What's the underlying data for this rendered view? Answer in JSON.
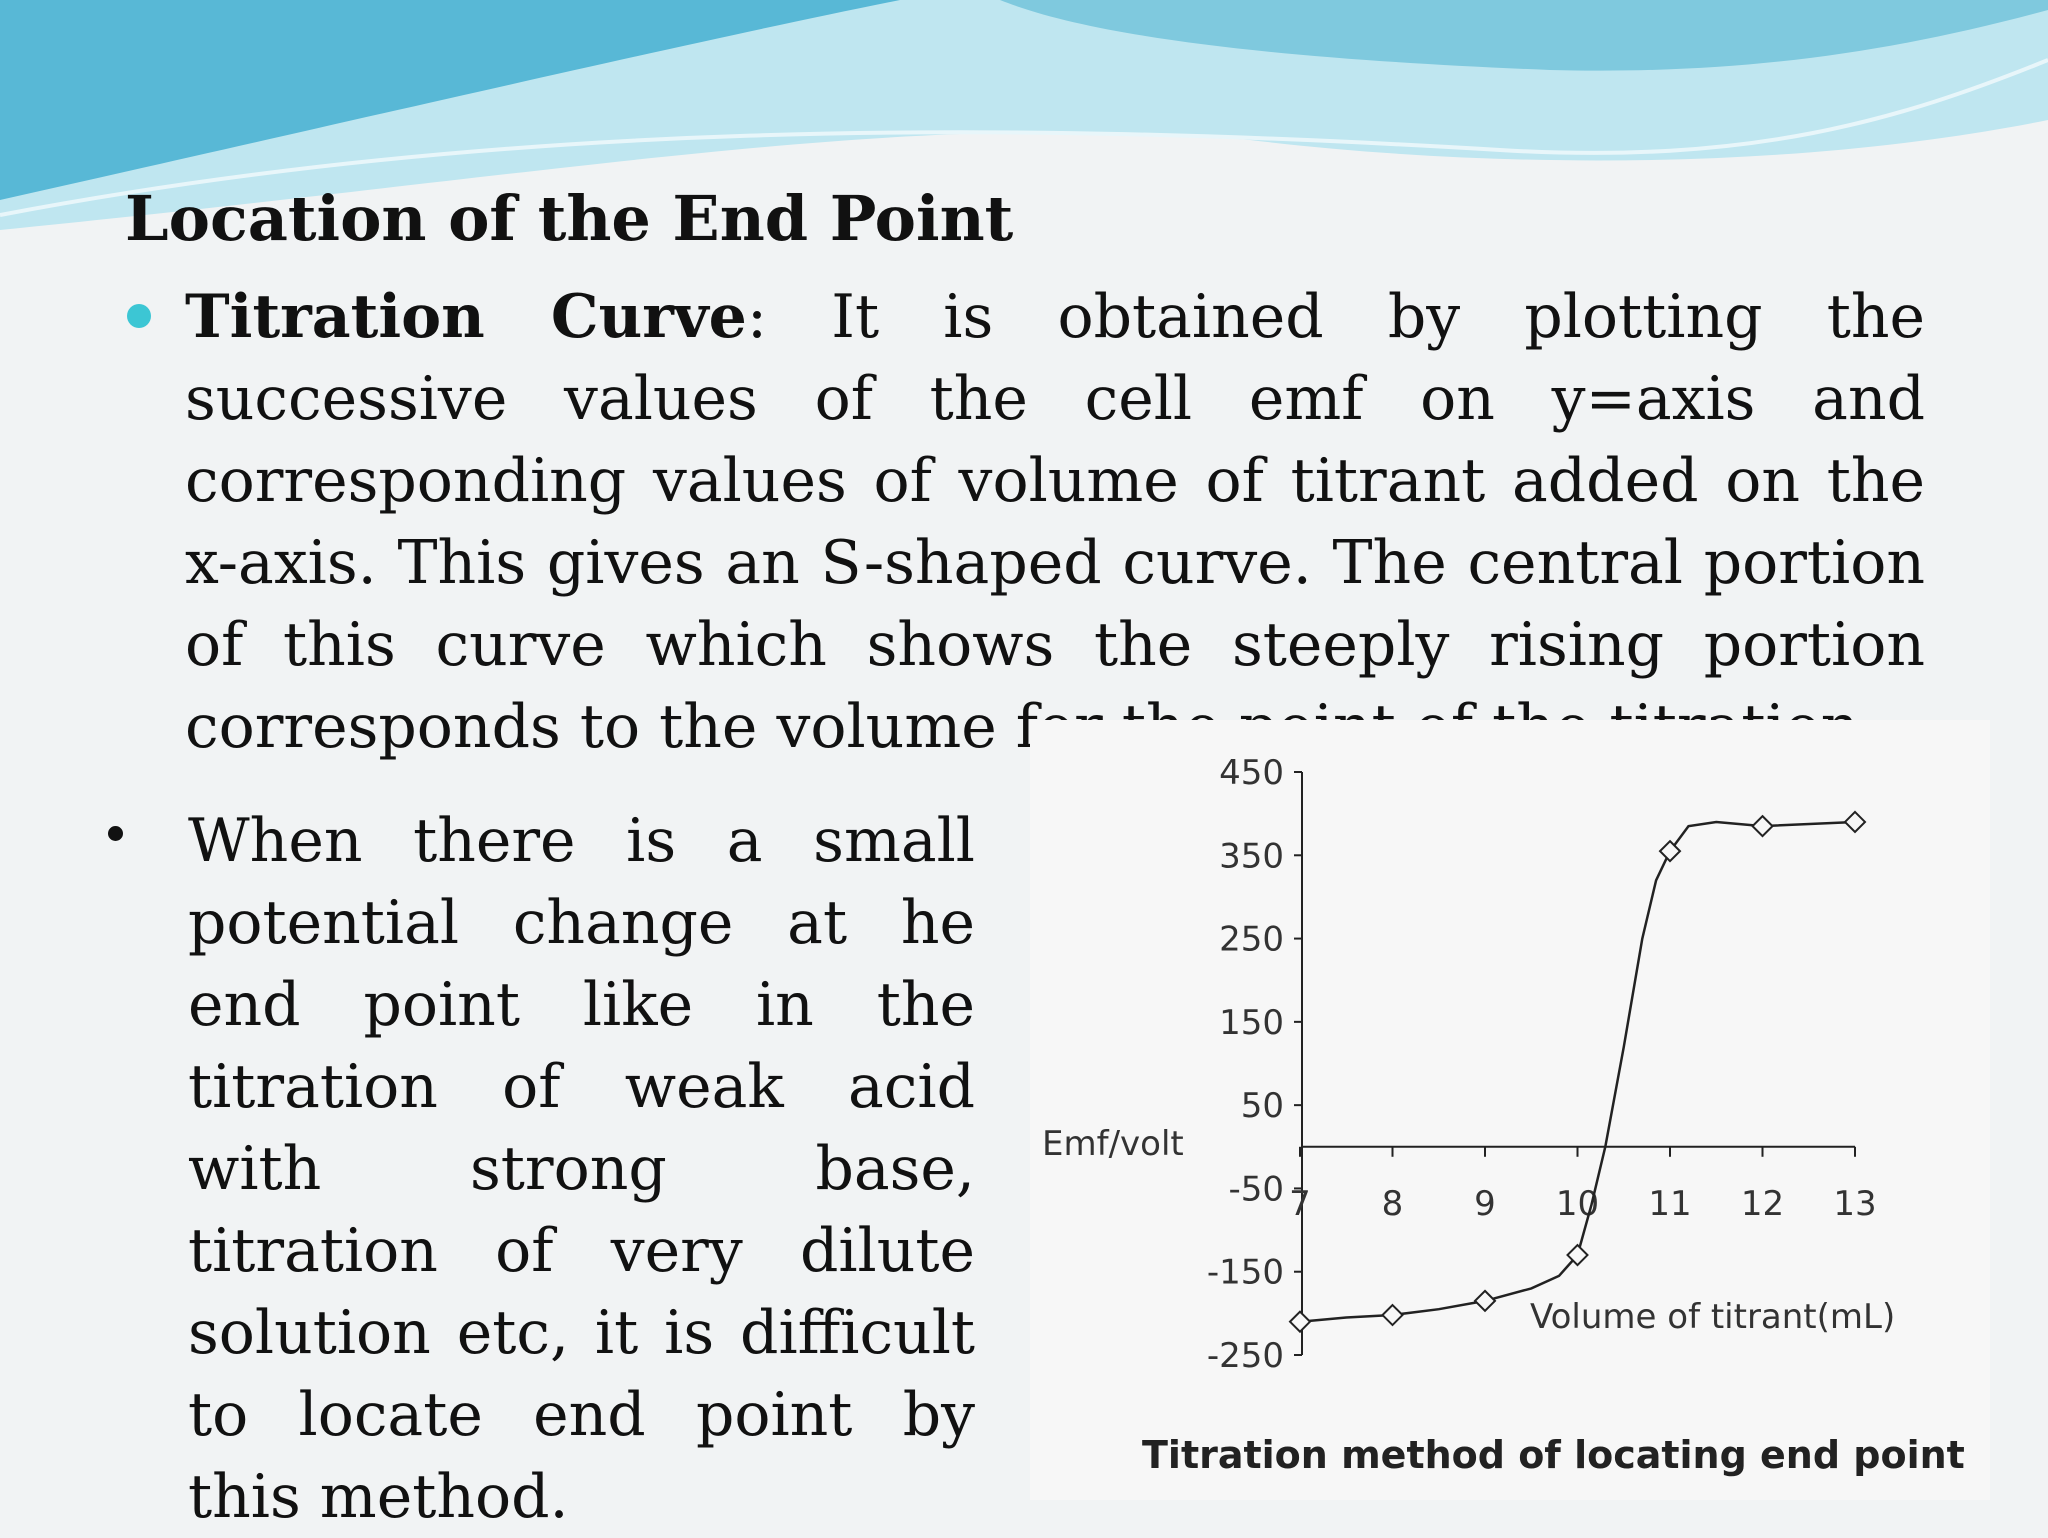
{
  "slide": {
    "title": "Location of the End Point",
    "bullets": [
      {
        "lead": "Titration Curve",
        "text": ": It is obtained by plotting the successive values of the cell emf on y=axis and corresponding values of volume of titrant added on the x-axis. This gives an S-shaped curve. The central portion of this curve which shows the steeply rising portion corresponds to the volume for the point of the titration."
      },
      {
        "text": "When there is a small potential change at he end point like in the titration of weak acid with strong base, titration of very dilute solution etc, it is difficult to locate end point by this method."
      }
    ]
  },
  "colors": {
    "accent": "#3cc6d4",
    "wave_dark": "#58b8d6",
    "wave_light": "#b8e3ee"
  },
  "chart_data": {
    "type": "line",
    "ylabel": "Emf/volt",
    "xlabel": "Volume of titrant(mL)",
    "caption": "Titration method of locating end point",
    "ylim": [
      -250,
      450
    ],
    "xlim": [
      7,
      13
    ],
    "y_ticks": [
      "450",
      "350",
      "250",
      "150",
      "50",
      "-50",
      "-150",
      "-250"
    ],
    "y_tick_values": [
      450,
      350,
      250,
      150,
      50,
      -50,
      -150,
      -250
    ],
    "x_ticks": [
      "7",
      "8",
      "9",
      "10",
      "11",
      "12",
      "13"
    ],
    "x_tick_values": [
      7,
      8,
      9,
      10,
      11,
      12,
      13
    ],
    "x_axis_at_y": 0,
    "markers": [
      {
        "x": 7.0,
        "y": -210
      },
      {
        "x": 8.0,
        "y": -202
      },
      {
        "x": 9.0,
        "y": -185
      },
      {
        "x": 10.0,
        "y": -130
      },
      {
        "x": 11.0,
        "y": 355
      },
      {
        "x": 12.0,
        "y": 385
      },
      {
        "x": 13.0,
        "y": 390
      }
    ],
    "curve": [
      {
        "x": 7.0,
        "y": -210
      },
      {
        "x": 7.5,
        "y": -205
      },
      {
        "x": 8.0,
        "y": -202
      },
      {
        "x": 8.5,
        "y": -195
      },
      {
        "x": 9.0,
        "y": -185
      },
      {
        "x": 9.5,
        "y": -170
      },
      {
        "x": 9.8,
        "y": -155
      },
      {
        "x": 10.0,
        "y": -130
      },
      {
        "x": 10.15,
        "y": -70
      },
      {
        "x": 10.3,
        "y": 0
      },
      {
        "x": 10.5,
        "y": 120
      },
      {
        "x": 10.7,
        "y": 250
      },
      {
        "x": 10.85,
        "y": 320
      },
      {
        "x": 11.0,
        "y": 355
      },
      {
        "x": 11.2,
        "y": 385
      },
      {
        "x": 11.5,
        "y": 390
      },
      {
        "x": 12.0,
        "y": 385
      },
      {
        "x": 13.0,
        "y": 390
      }
    ]
  }
}
